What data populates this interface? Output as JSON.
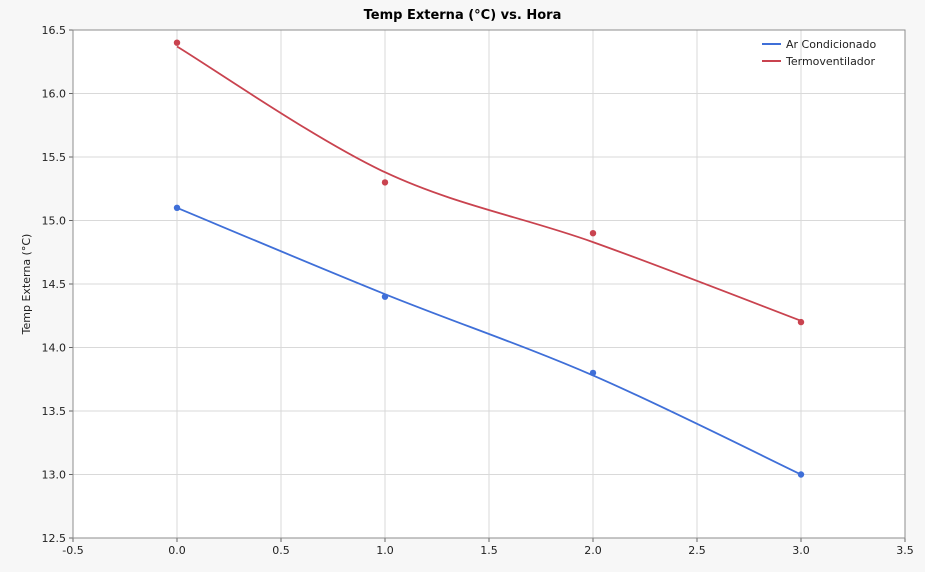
{
  "chart_data": {
    "type": "line",
    "title": "Temp Externa (°C) vs. Hora",
    "xlabel": "",
    "ylabel": "Temp Externa (°C)",
    "xlim": [
      -0.5,
      3.5
    ],
    "ylim": [
      12.5,
      16.5
    ],
    "x_ticks": [
      "-0.5",
      "0.0",
      "0.5",
      "1.0",
      "1.5",
      "2.0",
      "2.5",
      "3.0",
      "3.5"
    ],
    "y_ticks": [
      "12.5",
      "13.0",
      "13.5",
      "14.0",
      "14.5",
      "15.0",
      "15.5",
      "16.0",
      "16.5"
    ],
    "grid": true,
    "legend_position": "top-right",
    "x": [
      0,
      1,
      2,
      3
    ],
    "series": [
      {
        "name": "Ar Condicionado",
        "color": "#3f6fd8",
        "points": [
          15.1,
          14.4,
          13.8,
          13.0
        ],
        "fit": [
          15.1,
          14.42,
          13.78,
          13.0
        ]
      },
      {
        "name": "Termoventilador",
        "color": "#c9434f",
        "points": [
          16.4,
          15.3,
          14.9,
          14.2
        ],
        "fit": [
          16.37,
          15.38,
          14.83,
          14.21
        ]
      }
    ]
  }
}
